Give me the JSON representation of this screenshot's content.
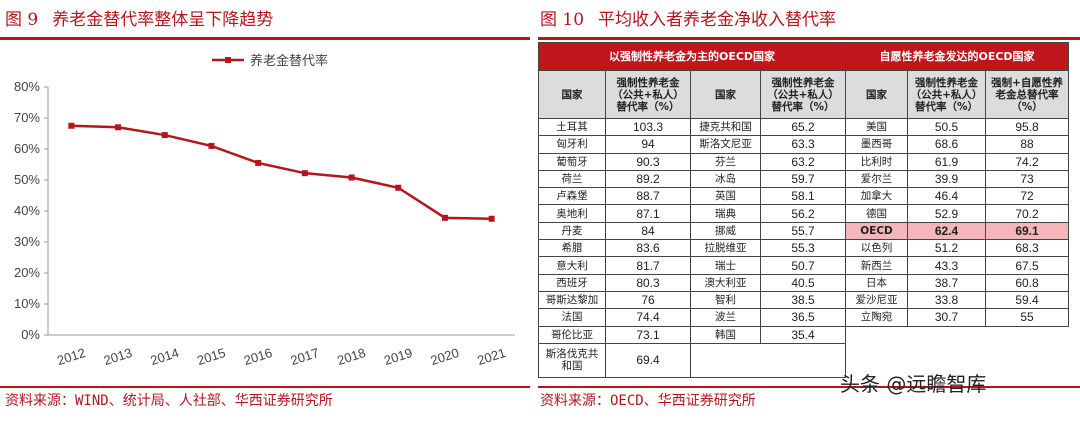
{
  "left_figure": {
    "number": "图 9",
    "title": "养老金替代率整体呈下降趋势",
    "source": "资料来源：WIND、统计局、人社部、华西证券研究所"
  },
  "right_figure": {
    "number": "图 10",
    "title": "平均收入者养老金净收入替代率",
    "source": "资料来源：OECD、华西证券研究所"
  },
  "watermark": "头条 @远瞻智库",
  "colors": {
    "accent": "#b4161d",
    "line": "#b4161d",
    "table_header": "#c0171f",
    "highlight": "#f4b6b8"
  },
  "chart_data": {
    "type": "line",
    "title": "",
    "xlabel": "",
    "ylabel": "",
    "categories": [
      "2012",
      "2013",
      "2014",
      "2015",
      "2016",
      "2017",
      "2018",
      "2019",
      "2020",
      "2021"
    ],
    "series": [
      {
        "name": "养老金替代率",
        "values": [
          67.5,
          67.0,
          64.5,
          61.0,
          55.5,
          52.2,
          50.8,
          47.5,
          37.8,
          37.5
        ]
      }
    ],
    "ylim": [
      0,
      80
    ],
    "yticks": [
      "0%",
      "10%",
      "20%",
      "30%",
      "40%",
      "50%",
      "60%",
      "70%",
      "80%"
    ],
    "legend": "top-center",
    "grid": false
  },
  "table": {
    "group_headers": [
      "以强制性养老金为主的OECD国家",
      "自愿性养老金发达的OECD国家"
    ],
    "col_headers": [
      "国家",
      "强制性养老金（公共+私人）替代率（%）",
      "国家",
      "强制性养老金（公共+私人）替代率（%）",
      "国家",
      "强制性养老金（公共+私人）替代率（%）",
      "强制+自愿性养老金总替代率（%）"
    ],
    "rows": [
      [
        "土耳其",
        "103.3",
        "捷克共和国",
        "65.2",
        "美国",
        "50.5",
        "95.8"
      ],
      [
        "匈牙利",
        "94",
        "斯洛文尼亚",
        "63.3",
        "墨西哥",
        "68.6",
        "88"
      ],
      [
        "葡萄牙",
        "90.3",
        "芬兰",
        "63.2",
        "比利时",
        "61.9",
        "74.2"
      ],
      [
        "荷兰",
        "89.2",
        "冰岛",
        "59.7",
        "爱尔兰",
        "39.9",
        "73"
      ],
      [
        "卢森堡",
        "88.7",
        "英国",
        "58.1",
        "加拿大",
        "46.4",
        "72"
      ],
      [
        "奥地利",
        "87.1",
        "瑞典",
        "56.2",
        "德国",
        "52.9",
        "70.2"
      ],
      [
        "丹麦",
        "84",
        "挪威",
        "55.7",
        "OECD",
        "62.4",
        "69.1"
      ],
      [
        "希腊",
        "83.6",
        "拉脱维亚",
        "55.3",
        "以色列",
        "51.2",
        "68.3"
      ],
      [
        "意大利",
        "81.7",
        "瑞士",
        "50.7",
        "新西兰",
        "43.3",
        "67.5"
      ],
      [
        "西班牙",
        "80.3",
        "澳大利亚",
        "40.5",
        "日本",
        "38.7",
        "60.8"
      ],
      [
        "哥斯达黎加",
        "76",
        "智利",
        "38.5",
        "爱沙尼亚",
        "33.8",
        "59.4"
      ],
      [
        "法国",
        "74.4",
        "波兰",
        "36.5",
        "立陶宛",
        "30.7",
        "55"
      ],
      [
        "哥伦比亚",
        "73.1",
        "韩国",
        "35.4",
        "",
        "",
        ""
      ],
      [
        "斯洛伐克共和国",
        "69.4",
        "",
        "",
        "",
        "",
        ""
      ]
    ]
  }
}
